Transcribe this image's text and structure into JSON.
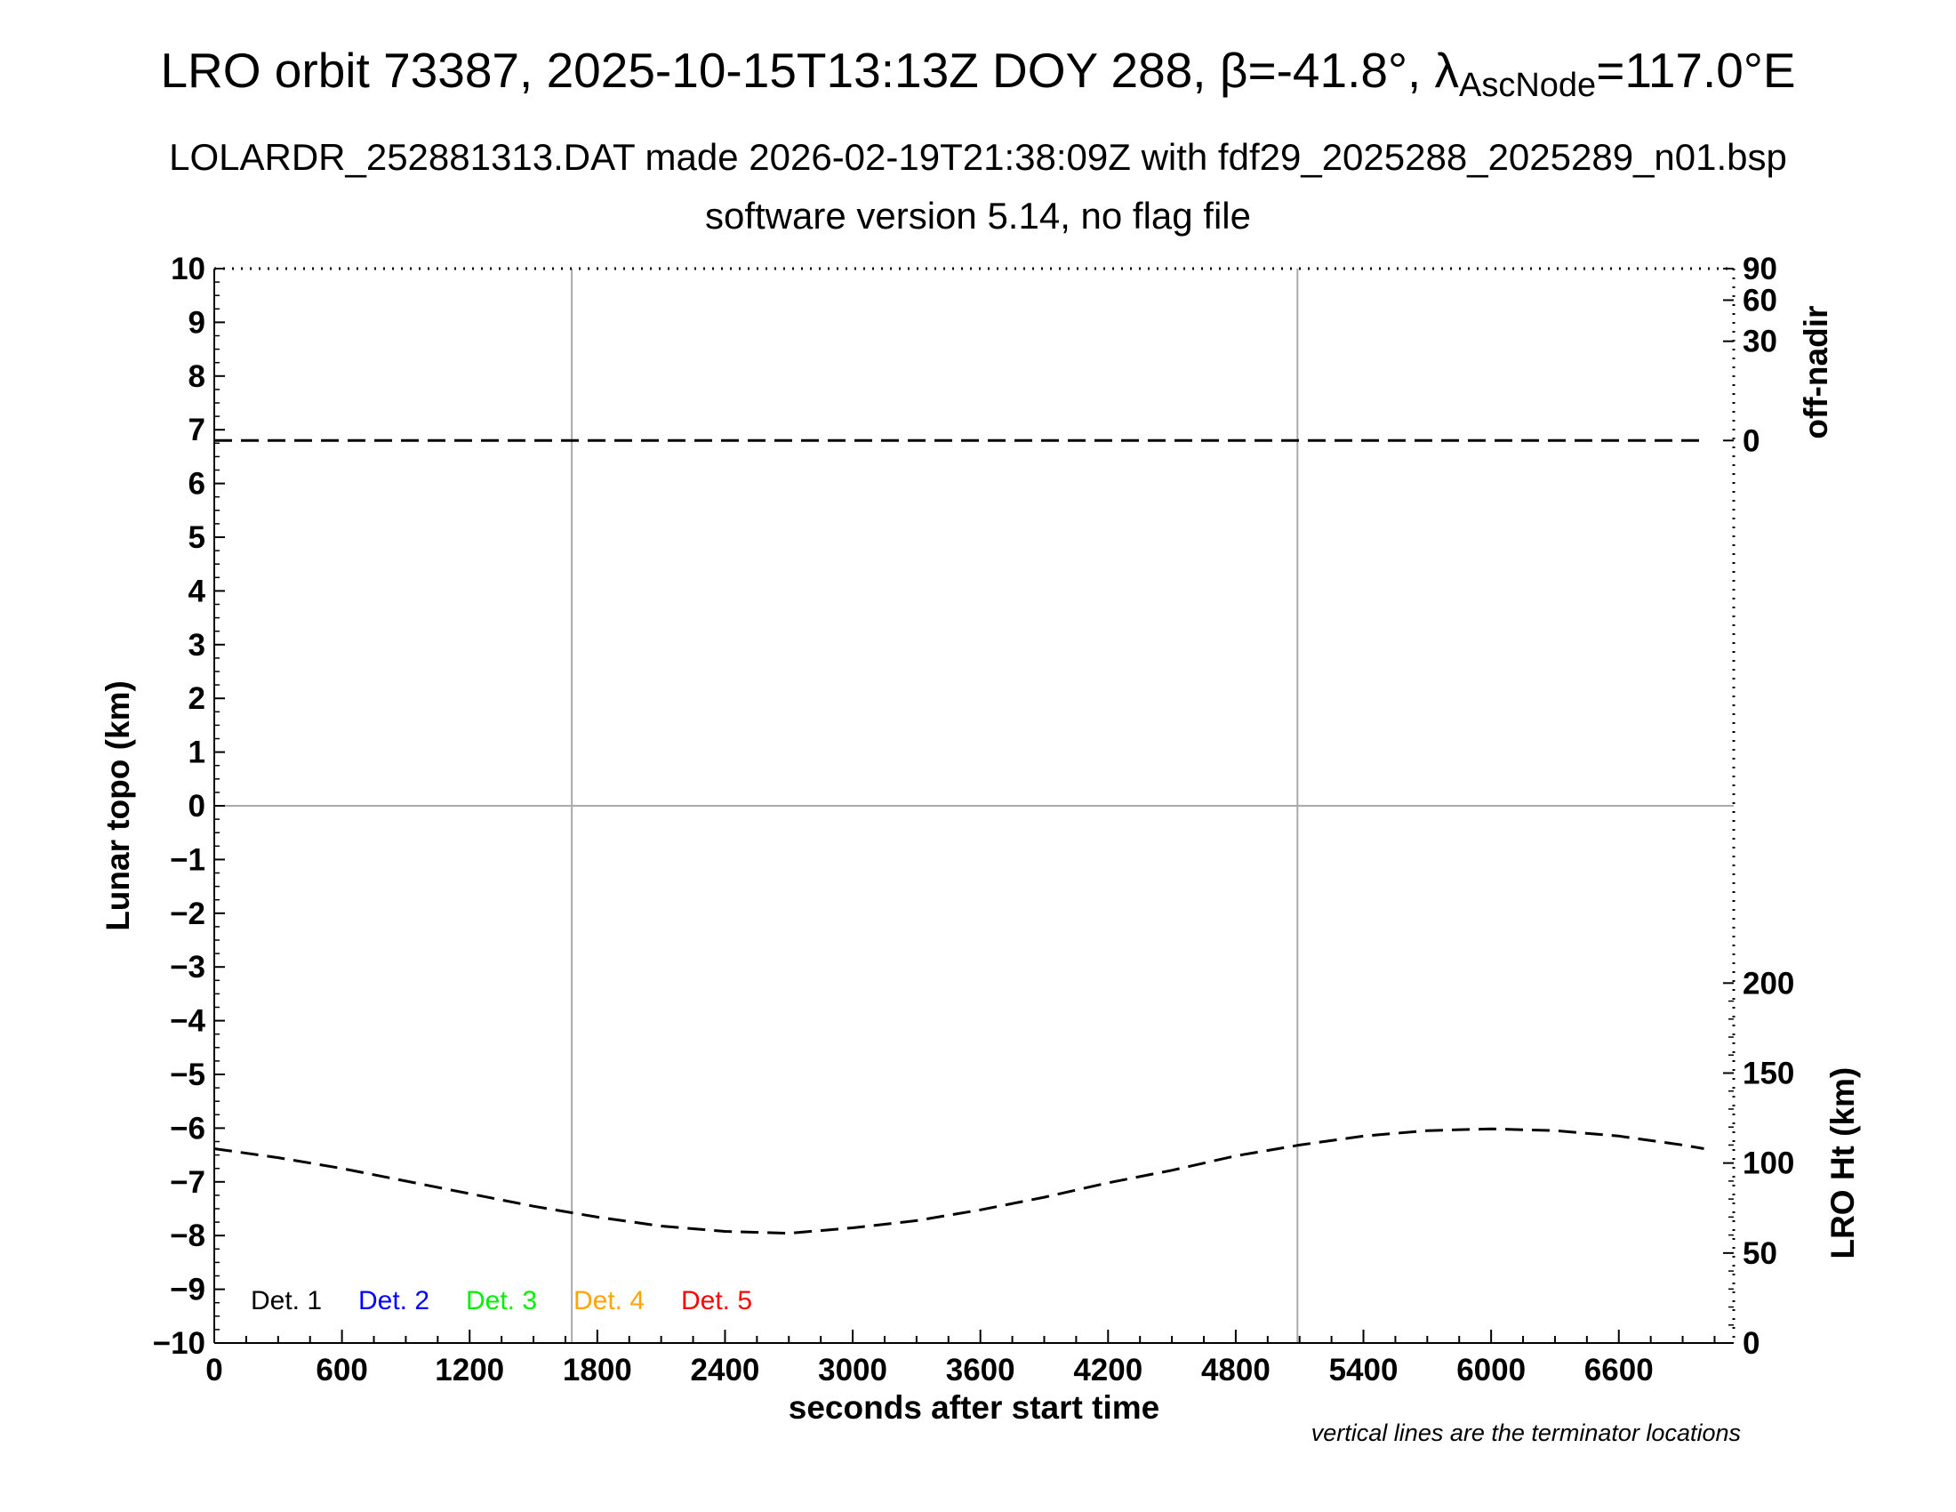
{
  "header": {
    "title_prefix": "LRO orbit 73387, 2025-10-15T13:13Z DOY 288, β=-41.8°, λ",
    "title_sub": "AscNode",
    "title_suffix": "=117.0°E",
    "subtitle1": "LOLARDR_252881313.DAT made 2026-02-19T21:38:09Z with fdf29_2025288_2025289_n01.bsp",
    "subtitle2": "software version 5.14, no flag file"
  },
  "chart_data": {
    "type": "line",
    "xlabel": "seconds after start time",
    "ylabel": "Lunar topo (km)",
    "xlim": [
      0,
      7140
    ],
    "ylim": [
      -10,
      10
    ],
    "x_ticks": [
      0,
      600,
      1200,
      1800,
      2400,
      3000,
      3600,
      4200,
      4800,
      5400,
      6000,
      6600
    ],
    "y_ticks": [
      10,
      9,
      8,
      7,
      6,
      5,
      4,
      3,
      2,
      1,
      0,
      -1,
      -2,
      -3,
      -4,
      -5,
      -6,
      -7,
      -8,
      -9,
      -10
    ],
    "y_tick_labels": [
      "10",
      "9",
      "8",
      "7",
      "6",
      "5",
      "4",
      "3",
      "2",
      "1",
      "0",
      "−1",
      "−2",
      "−3",
      "−4",
      "−5",
      "−6",
      "−7",
      "−8",
      "−9",
      "−10"
    ],
    "right_top_axis": {
      "label": "off-nadir",
      "ticks": [
        90,
        60,
        30,
        0
      ]
    },
    "right_bottom_axis": {
      "label": "LRO Ht (km)",
      "ylim": [
        0,
        200
      ],
      "ticks": [
        200,
        150,
        100,
        50,
        0
      ]
    },
    "terminators_x": [
      1680,
      5090
    ],
    "zero_line": 0,
    "series": [
      {
        "axis": "off-nadir",
        "style": "dashed",
        "x": [
          0,
          500,
          1000,
          1500,
          2000,
          2500,
          3000,
          3500,
          4000,
          4500,
          5000,
          5500,
          6000,
          6500,
          7000
        ],
        "values": [
          0,
          0,
          0,
          0,
          0,
          0,
          0,
          0,
          0,
          0,
          0,
          0,
          0,
          0,
          0
        ]
      },
      {
        "axis": "LRO Ht (km)",
        "style": "dashed",
        "x": [
          0,
          300,
          600,
          900,
          1200,
          1500,
          1800,
          2100,
          2400,
          2700,
          3000,
          3300,
          3600,
          3900,
          4200,
          4500,
          4800,
          5100,
          5400,
          5700,
          6000,
          6300,
          6600,
          6900,
          7000
        ],
        "values": [
          108,
          103,
          97,
          90,
          83,
          76,
          70,
          65,
          62,
          61,
          64,
          68,
          74,
          81,
          89,
          96,
          104,
          110,
          115,
          118,
          119,
          118,
          115,
          110,
          108
        ]
      }
    ],
    "legend": [
      {
        "label": "Det. 1",
        "color": "#000000"
      },
      {
        "label": "Det. 2",
        "color": "#0000ff"
      },
      {
        "label": "Det. 3",
        "color": "#00ee00"
      },
      {
        "label": "Det. 4",
        "color": "#ffa500"
      },
      {
        "label": "Det. 5",
        "color": "#ff0000"
      }
    ],
    "legend_position": "bottom-left",
    "note": "vertical lines are the terminator locations"
  }
}
